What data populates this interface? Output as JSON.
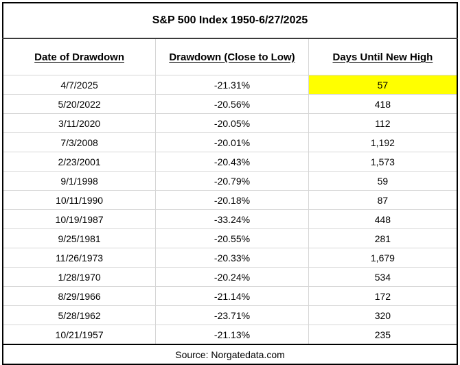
{
  "title": "S&P 500 Index 1950-6/27/2025",
  "source_note": "Source: Norgatedata.com",
  "colors": {
    "highlight": "#FFFF00",
    "grid": "#D6D6D6",
    "border": "#000000",
    "text": "#000000"
  },
  "chart_data": {
    "type": "table",
    "title": "S&P 500 Index 1950-6/27/2025",
    "columns": [
      "Date of Drawdown",
      "Drawdown (Close to Low)",
      "Days Until New High"
    ],
    "rows": [
      [
        "4/7/2025",
        "-21.31%",
        "57"
      ],
      [
        "5/20/2022",
        "-20.56%",
        "418"
      ],
      [
        "3/11/2020",
        "-20.05%",
        "112"
      ],
      [
        "7/3/2008",
        "-20.01%",
        "1,192"
      ],
      [
        "2/23/2001",
        "-20.43%",
        "1,573"
      ],
      [
        "9/1/1998",
        "-20.79%",
        "59"
      ],
      [
        "10/11/1990",
        "-20.18%",
        "87"
      ],
      [
        "10/19/1987",
        "-33.24%",
        "448"
      ],
      [
        "9/25/1981",
        "-20.55%",
        "281"
      ],
      [
        "11/26/1973",
        "-20.33%",
        "1,679"
      ],
      [
        "1/28/1970",
        "-20.24%",
        "534"
      ],
      [
        "8/29/1966",
        "-21.14%",
        "172"
      ],
      [
        "5/28/1962",
        "-23.71%",
        "320"
      ],
      [
        "10/21/1957",
        "-21.13%",
        "235"
      ]
    ],
    "highlighted_cell": {
      "row": 0,
      "column": 2,
      "color": "#FFFF00"
    },
    "source": "Source: Norgatedata.com",
    "layout": {
      "grid": true,
      "header_style": "bold-underline",
      "title_position": "top-center"
    }
  }
}
